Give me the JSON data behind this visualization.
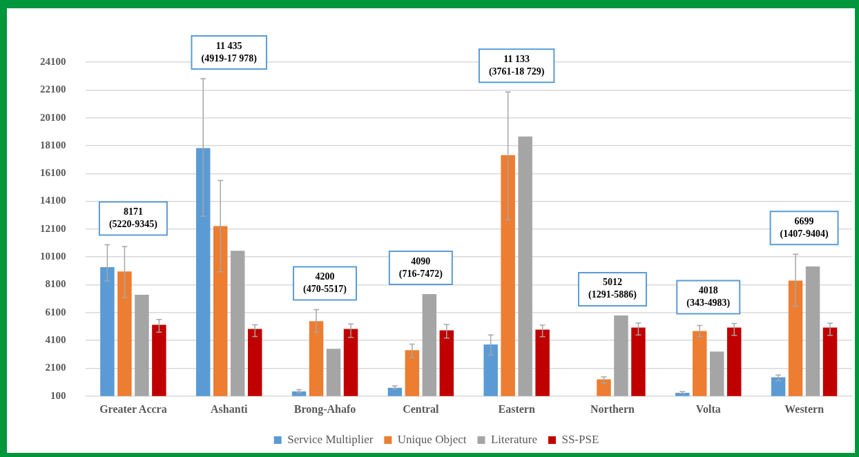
{
  "chart_data": {
    "type": "bar",
    "categories": [
      "Greater Accra",
      "Ashanti",
      "Brong-Ahafo",
      "Central",
      "Eastern",
      "Northern",
      "Volta",
      "Western"
    ],
    "series": [
      {
        "name": "Service Multiplier",
        "color": "#5b9bd5",
        "values": [
          9370,
          17930,
          440,
          700,
          3810,
          null,
          340,
          1460
        ],
        "errors": [
          [
            8380,
            10980
          ],
          [
            13020,
            22910
          ],
          [
            340,
            560
          ],
          [
            610,
            830
          ],
          [
            3040,
            4490
          ],
          null,
          [
            300,
            420
          ],
          [
            1220,
            1610
          ]
        ]
      },
      {
        "name": "Unique Object",
        "color": "#ed7d31",
        "values": [
          9060,
          12320,
          5490,
          3400,
          17420,
          1310,
          4780,
          8400
        ],
        "errors": [
          [
            7190,
            10840
          ],
          [
            9030,
            15590
          ],
          [
            4690,
            6310
          ],
          [
            2870,
            3840
          ],
          [
            12770,
            21960
          ],
          [
            1050,
            1480
          ],
          [
            4370,
            5180
          ],
          [
            6560,
            10300
          ]
        ]
      },
      {
        "name": "Literature",
        "color": "#a5a5a5",
        "values": [
          7380,
          10540,
          3500,
          7430,
          18750,
          5900,
          3300,
          9420
        ]
      },
      {
        "name": "SS-PSE",
        "color": "#c00000",
        "values": [
          5230,
          4930,
          4930,
          4830,
          4880,
          5030,
          5030,
          5030
        ],
        "errors": [
          [
            4690,
            5610
          ],
          [
            4380,
            5230
          ],
          [
            4320,
            5290
          ],
          [
            4270,
            5250
          ],
          [
            4370,
            5200
          ],
          [
            4490,
            5350
          ],
          [
            4470,
            5320
          ],
          [
            4470,
            5340
          ]
        ]
      }
    ],
    "ylim": [
      100,
      24100
    ],
    "yticks": [
      100,
      2100,
      4100,
      6100,
      8100,
      10100,
      12100,
      14100,
      16100,
      18100,
      20100,
      22100,
      24100
    ],
    "grid": "y",
    "legend": "bottom",
    "annotations": [
      "8171\n(5220-9345)",
      "11 435\n(4919-17 978)",
      "4200\n(470-5517)",
      "4090\n(716-7472)",
      "11 133\n(3761-18 729)",
      "5012\n(1291-5886)",
      "4018\n(343-4983)",
      "6699\n(1407-9404)"
    ]
  }
}
